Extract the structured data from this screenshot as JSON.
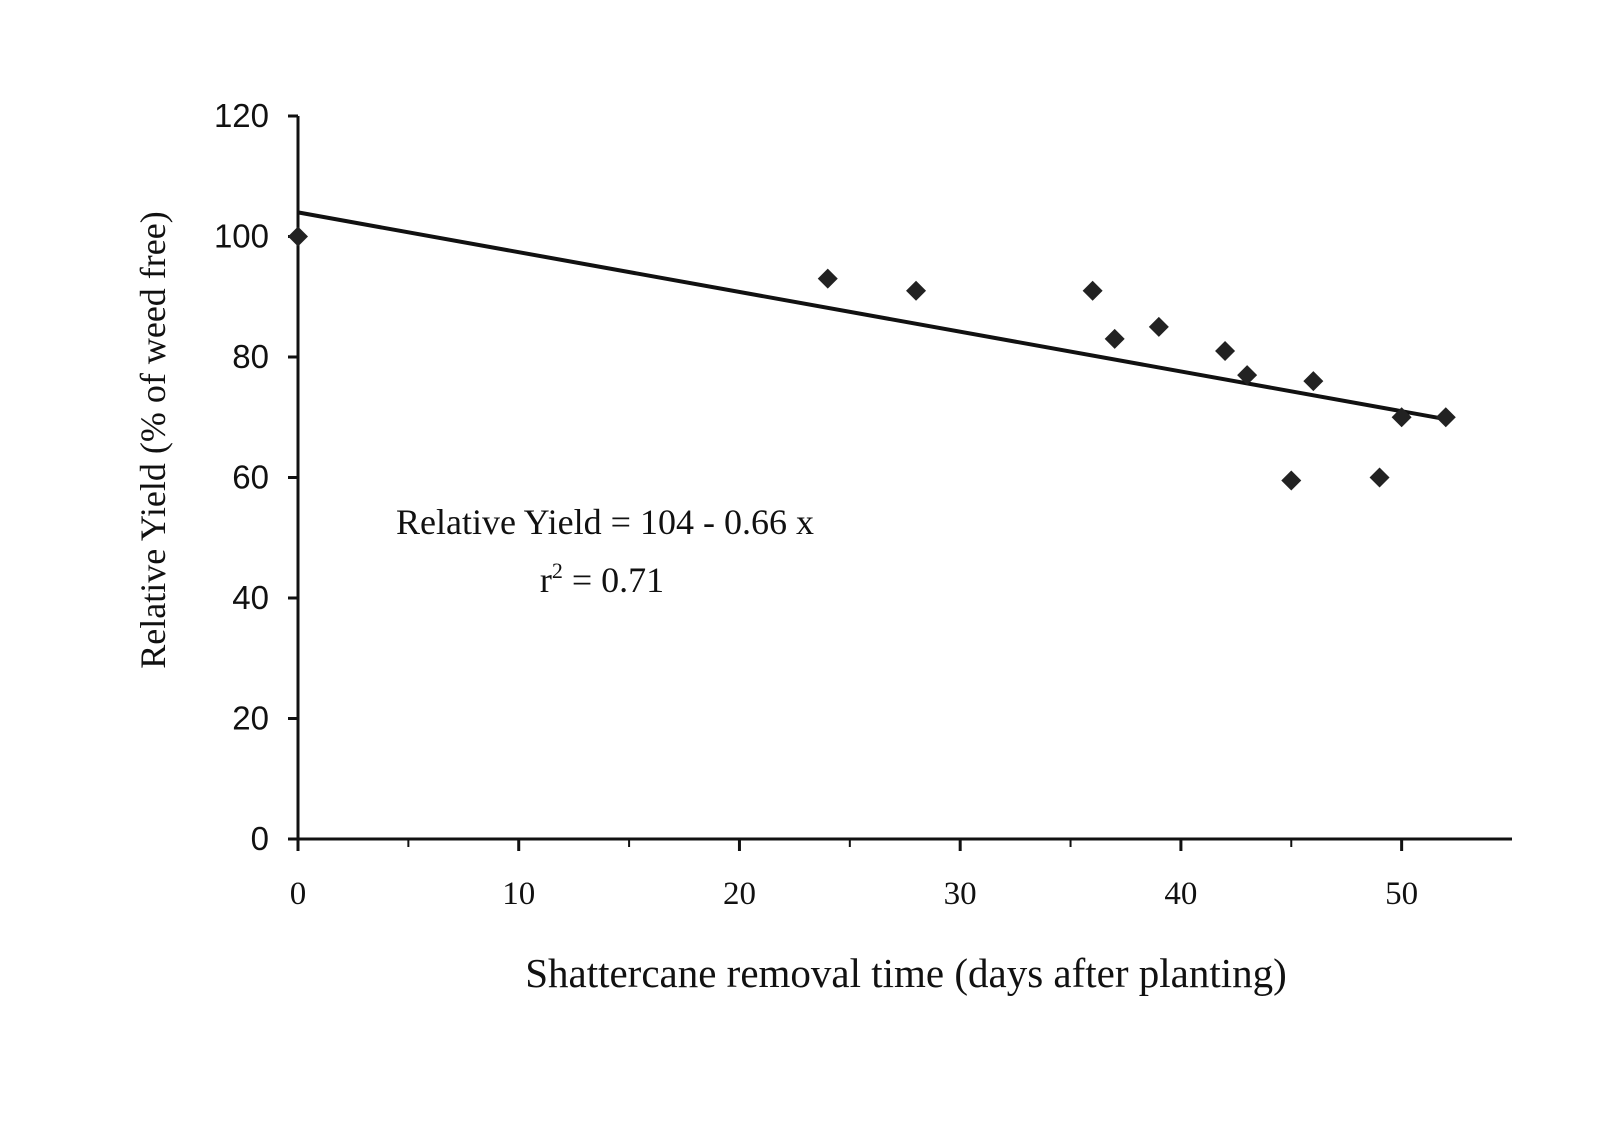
{
  "chart_data": {
    "type": "scatter",
    "title": "",
    "xlabel": "Shattercane removal time (days after planting)",
    "ylabel": "Relative Yield (% of weed free)",
    "xlim": [
      0,
      55
    ],
    "ylim": [
      0,
      120
    ],
    "x_ticks": [
      0,
      10,
      20,
      30,
      40,
      50
    ],
    "y_ticks": [
      0,
      20,
      40,
      60,
      80,
      100,
      120
    ],
    "grid": false,
    "legend": "none",
    "marker": "diamond",
    "marker_color": "#222222",
    "line_color": "#111111",
    "points": [
      {
        "x": 0,
        "y": 100
      },
      {
        "x": 24,
        "y": 93
      },
      {
        "x": 28,
        "y": 91
      },
      {
        "x": 36,
        "y": 91
      },
      {
        "x": 37,
        "y": 83
      },
      {
        "x": 39,
        "y": 85
      },
      {
        "x": 42,
        "y": 81
      },
      {
        "x": 43,
        "y": 77
      },
      {
        "x": 45,
        "y": 59.5
      },
      {
        "x": 46,
        "y": 76
      },
      {
        "x": 49,
        "y": 60
      },
      {
        "x": 50,
        "y": 70
      },
      {
        "x": 52,
        "y": 70
      }
    ],
    "trendline": {
      "intercept": 104,
      "slope": -0.66,
      "x_range": [
        0,
        52
      ]
    },
    "annotations": {
      "equation": "Relative Yield = 104 - 0.66 x",
      "r2_prefix": "r",
      "r2_superscript": "2",
      "r2_value": " = 0.71"
    }
  }
}
